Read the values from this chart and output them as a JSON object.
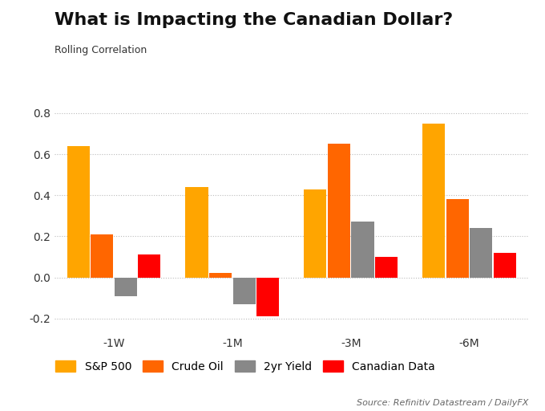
{
  "title": "What is Impacting the Canadian Dollar?",
  "subtitle": "Rolling Correlation",
  "categories": [
    "-1W",
    "-1M",
    "-3M",
    "-6M"
  ],
  "series": {
    "S&P 500": [
      0.64,
      0.44,
      0.43,
      0.75
    ],
    "Crude Oil": [
      0.21,
      0.02,
      0.65,
      0.38
    ],
    "2yr Yield": [
      -0.09,
      -0.13,
      0.27,
      0.24
    ],
    "Canadian Data": [
      0.11,
      -0.19,
      0.1,
      0.12
    ]
  },
  "colors": {
    "S&P 500": "#FFA500",
    "Crude Oil": "#FF6600",
    "2yr Yield": "#888888",
    "Canadian Data": "#FF0000"
  },
  "ylim": [
    -0.25,
    0.85
  ],
  "yticks": [
    -0.2,
    0.0,
    0.2,
    0.4,
    0.6,
    0.8
  ],
  "source": "Source: Refinitiv Datastream / DailyFX",
  "background_color": "#FFFFFF",
  "grid_color": "#BBBBBB",
  "title_fontsize": 16,
  "subtitle_fontsize": 9,
  "tick_fontsize": 10,
  "legend_fontsize": 10
}
